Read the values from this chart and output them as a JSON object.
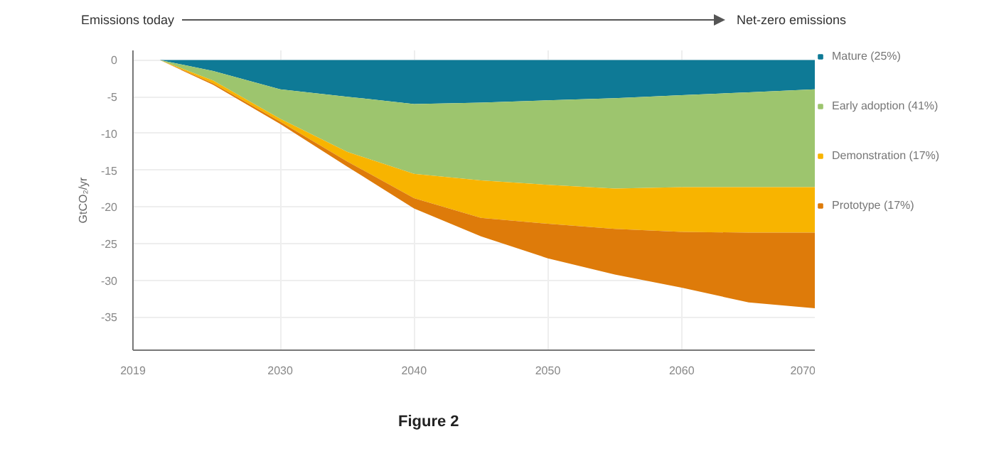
{
  "chart_data": {
    "type": "area",
    "stacked": true,
    "ylabel": "GtCO₂/yr",
    "annotations": [
      "Emissions today",
      "Net-zero emissions",
      "Figure 2"
    ],
    "x": [
      2019,
      2021,
      2025,
      2030,
      2035,
      2040,
      2045,
      2050,
      2055,
      2060,
      2065,
      2070
    ],
    "series": [
      {
        "name": "Mature (25%)",
        "color": "#0e7a96",
        "values": [
          0,
          0,
          -1.5,
          -4,
          -5,
          -6,
          -5.8,
          -5.5,
          -5.2,
          -4.8,
          -4.4,
          -4
        ]
      },
      {
        "name": "Early adoption (41%)",
        "color": "#9dc56e",
        "values": [
          0,
          0,
          -1.3,
          -4,
          -7.5,
          -9.5,
          -10.6,
          -11.5,
          -12.3,
          -12.5,
          -12.9,
          -13.3
        ]
      },
      {
        "name": "Demonstration (17%)",
        "color": "#f8b400",
        "values": [
          0,
          0,
          -0.4,
          -0.4,
          -1.3,
          -3.3,
          -5.1,
          -5.3,
          -5.5,
          -6.1,
          -6.2,
          -6.2
        ]
      },
      {
        "name": "Prototype (17%)",
        "color": "#de7b0a",
        "values": [
          0,
          0,
          -0.2,
          -0.3,
          -0.7,
          -1.4,
          -2.5,
          -4.7,
          -6.2,
          -7.6,
          -9.5,
          -10.3
        ]
      }
    ],
    "xlim": [
      2019,
      2070
    ],
    "xticks": [
      2019,
      2030,
      2040,
      2050,
      2060,
      2070
    ],
    "ylim": [
      -39.5,
      1.3
    ],
    "yticks": [
      0,
      -5,
      -10,
      -15,
      -20,
      -25,
      -30,
      -35
    ],
    "grid": true,
    "legend": "right"
  }
}
